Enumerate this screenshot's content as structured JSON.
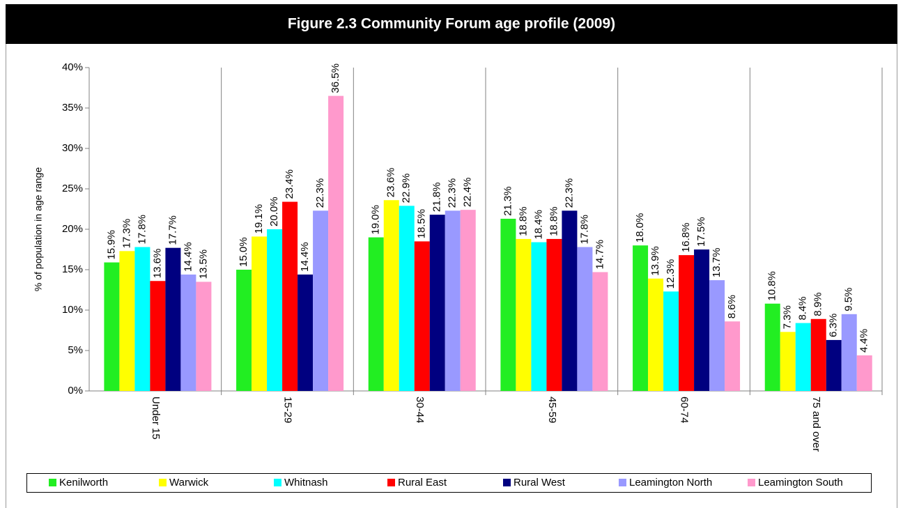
{
  "chart_data": {
    "type": "bar",
    "title": "Figure 2.3 Community Forum age profile (2009)",
    "y_label": "% of population in age range",
    "categories": [
      "Under 15",
      "15-29",
      "30-44",
      "45-59",
      "60-74",
      "75 and over"
    ],
    "ylim": [
      0,
      40
    ],
    "yticks": [
      {
        "value": 0,
        "label": "0%"
      },
      {
        "value": 5,
        "label": "5%"
      },
      {
        "value": 10,
        "label": "10%"
      },
      {
        "value": 15,
        "label": "15%"
      },
      {
        "value": 20,
        "label": "20%"
      },
      {
        "value": 25,
        "label": "25%"
      },
      {
        "value": 30,
        "label": "30%"
      },
      {
        "value": 35,
        "label": "35%"
      },
      {
        "value": 40,
        "label": "40%"
      }
    ],
    "legend": "bottom",
    "series": [
      {
        "name": "Kenilworth",
        "color": "#22ee22",
        "values": [
          15.9,
          15.0,
          19.0,
          21.3,
          18.0,
          10.8
        ],
        "value_labels": [
          "15.9%",
          "15.0%",
          "19.0%",
          "21.3%",
          "18.0%",
          "10.8%"
        ]
      },
      {
        "name": "Warwick",
        "color": "#ffff00",
        "values": [
          17.3,
          19.1,
          23.6,
          18.8,
          13.9,
          7.3
        ],
        "value_labels": [
          "17.3%",
          "19.1%",
          "23.6%",
          "18.8%",
          "13.9%",
          "7.3%"
        ]
      },
      {
        "name": "Whitnash",
        "color": "#00ffff",
        "values": [
          17.8,
          20.0,
          22.9,
          18.4,
          12.3,
          8.4
        ],
        "value_labels": [
          "17.8%",
          "20.0%",
          "22.9%",
          "18.4%",
          "12.3%",
          "8.4%"
        ]
      },
      {
        "name": "Rural East",
        "color": "#ff0000",
        "values": [
          13.6,
          23.4,
          18.5,
          18.8,
          16.8,
          8.9
        ],
        "value_labels": [
          "13.6%",
          "23.4%",
          "18.5%",
          "18.8%",
          "16.8%",
          "8.9%"
        ]
      },
      {
        "name": "Rural West",
        "color": "#000080",
        "values": [
          17.7,
          14.4,
          21.8,
          22.3,
          17.5,
          6.3
        ],
        "value_labels": [
          "17.7%",
          "14.4%",
          "21.8%",
          "22.3%",
          "17.5%",
          "6.3%"
        ]
      },
      {
        "name": "Leamington North",
        "color": "#9999ff",
        "values": [
          14.4,
          22.3,
          22.3,
          17.8,
          13.7,
          9.5
        ],
        "value_labels": [
          "14.4%",
          "22.3%",
          "22.3%",
          "17.8%",
          "13.7%",
          "9.5%"
        ]
      },
      {
        "name": "Leamington South",
        "color": "#ff99cc",
        "values": [
          13.5,
          36.5,
          22.4,
          14.7,
          8.6,
          4.4
        ],
        "value_labels": [
          "13.5%",
          "36.5%",
          "22.4%",
          "14.7%",
          "8.6%",
          "4.4%"
        ]
      }
    ]
  }
}
